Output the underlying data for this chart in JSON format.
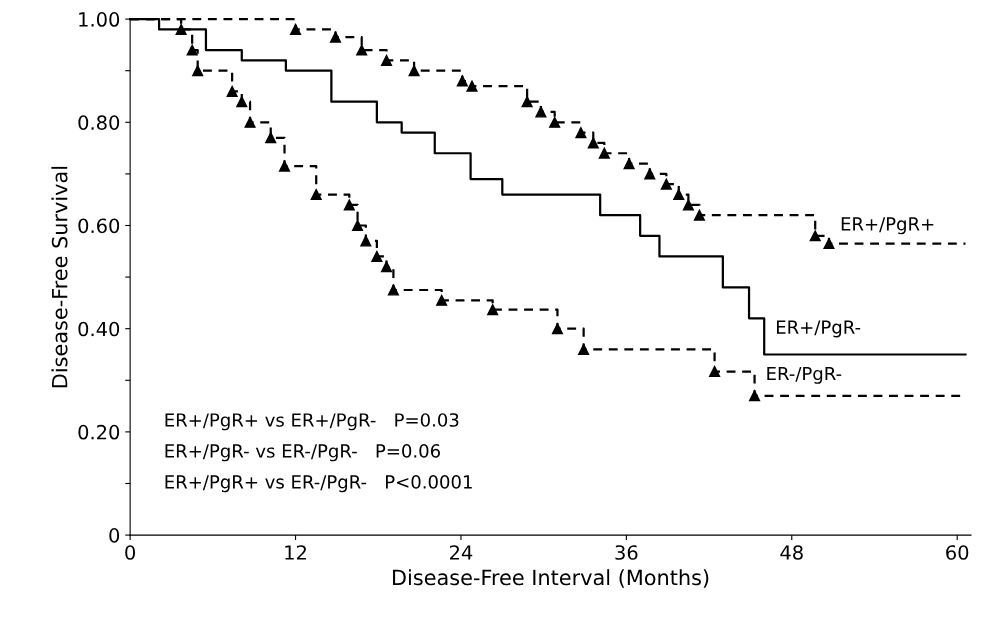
{
  "chart_data": {
    "type": "step",
    "xlabel": "Disease-Free Interval (Months)",
    "ylabel": "Disease-Free Survival",
    "xlim": [
      0,
      61
    ],
    "xticks": [
      0,
      12,
      24,
      36,
      48,
      60
    ],
    "ylim": [
      0,
      1.0
    ],
    "yticks": [
      {
        "value": 0,
        "label": "0"
      },
      {
        "value": 0.1,
        "label": null
      },
      {
        "value": 0.2,
        "label": "0.20"
      },
      {
        "value": 0.3,
        "label": null
      },
      {
        "value": 0.4,
        "label": "0.40"
      },
      {
        "value": 0.5,
        "label": null
      },
      {
        "value": 0.6,
        "label": "0.60"
      },
      {
        "value": 0.7,
        "label": null
      },
      {
        "value": 0.8,
        "label": "0.80"
      },
      {
        "value": 0.9,
        "label": null
      },
      {
        "value": 1.0,
        "label": "1.00"
      }
    ],
    "grid": false,
    "legend": false,
    "series": [
      {
        "name": "ER+/PgR+",
        "color": "#000000",
        "line_style": "dashed",
        "marker": "triangle",
        "x": [
          0,
          12,
          14.9,
          16.8,
          18.6,
          20.6,
          24.1,
          24.8,
          28.8,
          29.8,
          30.8,
          32.7,
          33.6,
          34.4,
          36.2,
          37.7,
          38.9,
          39.8,
          40.5,
          41.3,
          49.7,
          50.7,
          60.6
        ],
        "values": [
          1.0,
          0.98,
          0.965,
          0.94,
          0.92,
          0.9,
          0.88,
          0.87,
          0.84,
          0.82,
          0.8,
          0.78,
          0.76,
          0.74,
          0.72,
          0.7,
          0.68,
          0.66,
          0.64,
          0.62,
          0.58,
          0.565,
          0.565
        ]
      },
      {
        "name": "ER+/PgR-",
        "color": "#000000",
        "line_style": "solid",
        "marker": "none",
        "x": [
          0,
          2.1,
          5.5,
          8.1,
          11.3,
          14.6,
          17.9,
          19.7,
          22.1,
          24.7,
          27,
          34.1,
          37,
          38.4,
          43,
          44.9,
          46,
          60.6
        ],
        "values": [
          1.0,
          0.98,
          0.94,
          0.92,
          0.9,
          0.84,
          0.8,
          0.78,
          0.74,
          0.69,
          0.66,
          0.62,
          0.58,
          0.54,
          0.48,
          0.42,
          0.35,
          0.35
        ]
      },
      {
        "name": "ER-/PgR-",
        "color": "#000000",
        "line_style": "dashed",
        "marker": "triangle",
        "x": [
          0,
          3.7,
          4.5,
          4.9,
          7.4,
          8.1,
          8.7,
          10.2,
          11.2,
          13.5,
          15.9,
          16.5,
          17.1,
          17.9,
          18.6,
          19.1,
          22.6,
          26.3,
          31,
          32.9,
          42.4,
          45.3,
          60.4
        ],
        "values": [
          1.0,
          0.98,
          0.94,
          0.9,
          0.86,
          0.84,
          0.8,
          0.77,
          0.715,
          0.66,
          0.64,
          0.6,
          0.57,
          0.54,
          0.52,
          0.475,
          0.455,
          0.437,
          0.4,
          0.36,
          0.317,
          0.27,
          0.27
        ]
      }
    ],
    "annotations": [
      "ER+/PgR+ vs ER+/PgR-   P=0.03",
      "ER+/PgR- vs ER-/PgR-   P=0.06",
      "ER+/PgR+ vs ER-/PgR-   P<0.0001"
    ]
  }
}
